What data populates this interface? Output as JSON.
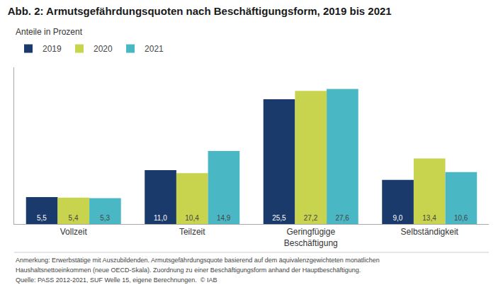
{
  "chart_data": {
    "type": "bar",
    "title": "Abb. 2: Armutsgefährdungsquoten nach Beschäftigungsform, 2019 bis 2021",
    "subtitle": "Anteile in Prozent",
    "categories": [
      "Vollzeit",
      "Teilzeit",
      "Geringfügige\nBeschäftigung",
      "Selbständigkeit"
    ],
    "series": [
      {
        "name": "2019",
        "color": "#1a3a6b",
        "values": [
          5.5,
          11.0,
          25.5,
          9.0
        ],
        "value_labels": [
          "5,5",
          "11,0",
          "25,5",
          "9,0"
        ]
      },
      {
        "name": "2020",
        "color": "#c8d44e",
        "values": [
          5.4,
          10.4,
          27.2,
          13.4
        ],
        "value_labels": [
          "5,4",
          "10,4",
          "27,2",
          "13,4"
        ]
      },
      {
        "name": "2021",
        "color": "#4ab8c4",
        "values": [
          5.3,
          14.9,
          27.6,
          10.6
        ],
        "value_labels": [
          "5,3",
          "14,9",
          "27,6",
          "10,6"
        ]
      }
    ],
    "ylim": [
      0,
      32
    ],
    "yticks": [],
    "tick_labels": "x",
    "grid": false,
    "legend": "upper left",
    "data_labels": true,
    "annotations": [
      "Anmerkung: Erwerbstätige mit Auszubildenden. Armutsgefährdungsquote basierend auf dem äquivalenzgewichteten monatlichen",
      "Haushaltsnettoeinkommen (neue OECD-Skala). Zuordnung zu einer Beschäftigungsform anhand der Hauptbeschäftigung.",
      "Quelle: PASS 2012-2021, SUF Welle 15, eigene Berechnungen.  © IAB"
    ]
  }
}
